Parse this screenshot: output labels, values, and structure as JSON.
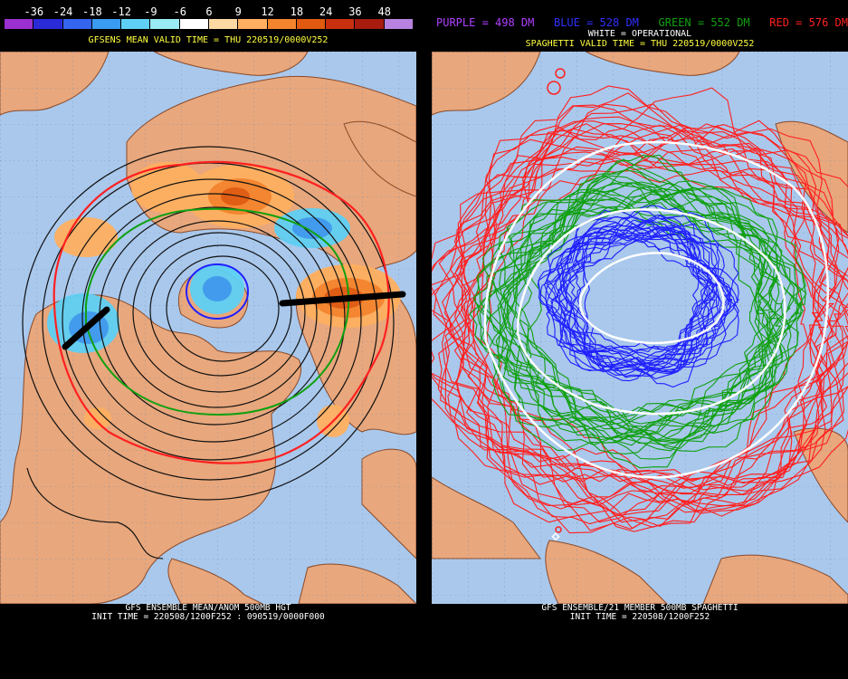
{
  "left": {
    "scale_labels": [
      "-36",
      "-24",
      "-18",
      "-12",
      "-9",
      "-6",
      "6",
      "9",
      "12",
      "18",
      "24",
      "36",
      "48"
    ],
    "scale_colors": [
      "#9b30d0",
      "#2a2ad6",
      "#3565ee",
      "#3a9bf2",
      "#5fd0f5",
      "#9aeaf4",
      "#ffffff",
      "#ffd9a3",
      "#ffb060",
      "#f5852d",
      "#e05a10",
      "#c83010",
      "#a81c10",
      "#b882e0"
    ],
    "title": "GFSENS MEAN VALID TIME = THU 220519/0000V252",
    "footer_line1": "GFS ENSEMBLE MEAN/ANOM 500MB HGT",
    "footer_line2": "INIT TIME = 220508/1200F252 : 090519/0000F000"
  },
  "right": {
    "legend": [
      {
        "text": "PURPLE = 498 DM",
        "color": "#b040ff"
      },
      {
        "text": "BLUE = 528 DM",
        "color": "#3030ff"
      },
      {
        "text": "GREEN = 552 DM",
        "color": "#10a010"
      },
      {
        "text": "RED = 576 DM",
        "color": "#ff2020"
      }
    ],
    "white_label": "WHITE = OPERATIONAL",
    "title": "SPAGHETTI VALID TIME = THU 220519/0000V252",
    "footer_line1": "GFS ENSEMBLE/21 MEMBER 500MB SPAGHETTI",
    "footer_line2": "INIT TIME = 220508/1200F252"
  },
  "colors": {
    "ocean": "#a9c8ec",
    "land": "#e8a77c",
    "title": "#ffff40",
    "footer": "#ffffff"
  }
}
